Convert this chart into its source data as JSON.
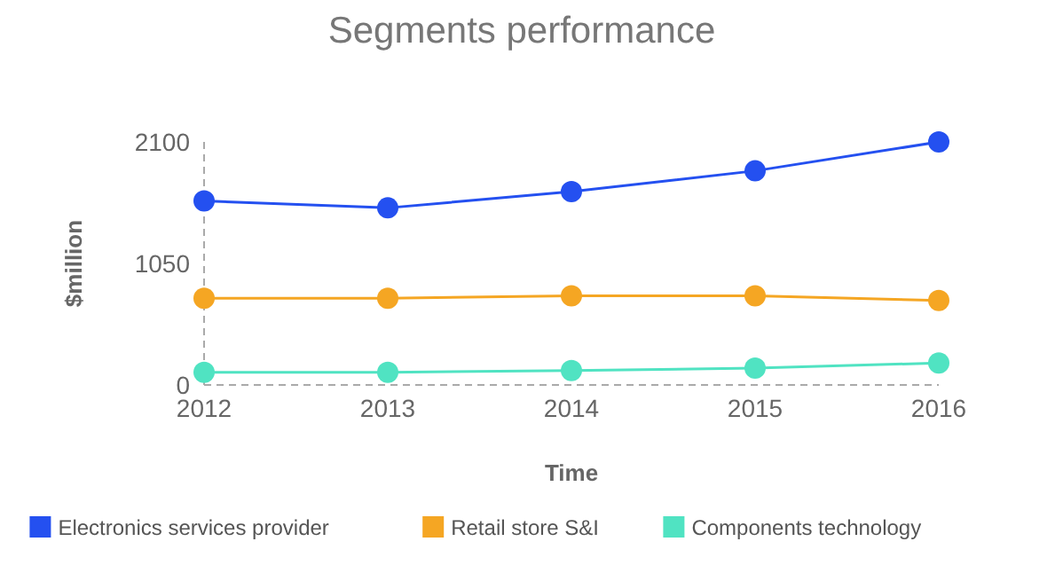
{
  "chart_data": {
    "type": "line",
    "title": "Segments performance",
    "xlabel": "Time",
    "ylabel": "$million",
    "x": [
      2012,
      2013,
      2014,
      2015,
      2016
    ],
    "xlim": [
      2012,
      2016
    ],
    "xticks": [
      2012,
      2013,
      2014,
      2015,
      2016
    ],
    "ylim": [
      0,
      2100
    ],
    "yticks": [
      0,
      1050,
      2100
    ],
    "marker": "circle",
    "legend": "bottom",
    "grid": false,
    "series": [
      {
        "name": "Electronics services provider",
        "color": "#2450f0",
        "values": [
          1590,
          1530,
          1670,
          1850,
          2100
        ]
      },
      {
        "name": "Retail store S&I",
        "color": "#f5a623",
        "values": [
          750,
          750,
          770,
          770,
          730
        ]
      },
      {
        "name": "Components technology",
        "color": "#50e3c2",
        "values": [
          110,
          110,
          125,
          145,
          190
        ]
      }
    ]
  }
}
